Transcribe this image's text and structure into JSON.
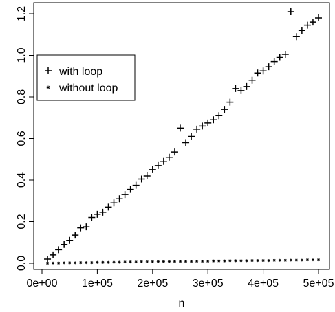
{
  "chart_data": {
    "type": "scatter",
    "title": "",
    "xlabel": "n",
    "ylabel": "",
    "xlim": [
      0,
      500000
    ],
    "ylim": [
      0,
      1.2
    ],
    "grid": false,
    "legend": {
      "position": "top-left",
      "entries": [
        "with loop",
        "without loop"
      ]
    },
    "x_ticks": [
      {
        "value": 0,
        "label": "0e+00"
      },
      {
        "value": 100000,
        "label": "1e+05"
      },
      {
        "value": 200000,
        "label": "2e+05"
      },
      {
        "value": 300000,
        "label": "3e+05"
      },
      {
        "value": 400000,
        "label": "4e+05"
      },
      {
        "value": 500000,
        "label": "5e+05"
      }
    ],
    "y_ticks": [
      {
        "value": 0.0,
        "label": "0.0"
      },
      {
        "value": 0.2,
        "label": "0.2"
      },
      {
        "value": 0.4,
        "label": "0.4"
      },
      {
        "value": 0.6,
        "label": "0.6"
      },
      {
        "value": 0.8,
        "label": "0.8"
      },
      {
        "value": 1.0,
        "label": "1.0"
      },
      {
        "value": 1.2,
        "label": "1.2"
      }
    ],
    "x": [
      10000,
      20000,
      30000,
      40000,
      50000,
      60000,
      70000,
      80000,
      90000,
      100000,
      110000,
      120000,
      130000,
      140000,
      150000,
      160000,
      170000,
      180000,
      190000,
      200000,
      210000,
      220000,
      230000,
      240000,
      250000,
      260000,
      270000,
      280000,
      290000,
      300000,
      310000,
      320000,
      330000,
      340000,
      350000,
      360000,
      370000,
      380000,
      390000,
      400000,
      410000,
      420000,
      430000,
      440000,
      450000,
      460000,
      470000,
      480000,
      490000,
      500000
    ],
    "series": [
      {
        "name": "with loop",
        "marker": "plus",
        "values": [
          0.02,
          0.04,
          0.065,
          0.09,
          0.11,
          0.135,
          0.17,
          0.175,
          0.22,
          0.235,
          0.245,
          0.27,
          0.29,
          0.31,
          0.33,
          0.355,
          0.375,
          0.405,
          0.42,
          0.45,
          0.47,
          0.49,
          0.51,
          0.535,
          0.65,
          0.58,
          0.61,
          0.645,
          0.66,
          0.675,
          0.69,
          0.71,
          0.74,
          0.775,
          0.84,
          0.83,
          0.85,
          0.88,
          0.915,
          0.925,
          0.945,
          0.97,
          0.99,
          1.005,
          1.21,
          1.09,
          1.12,
          1.145,
          1.16,
          1.18
        ]
      },
      {
        "name": "without loop",
        "marker": "star",
        "values": [
          0.0,
          0.001,
          0.001,
          0.002,
          0.002,
          0.002,
          0.003,
          0.003,
          0.003,
          0.004,
          0.004,
          0.004,
          0.005,
          0.005,
          0.006,
          0.006,
          0.006,
          0.007,
          0.007,
          0.007,
          0.008,
          0.008,
          0.008,
          0.009,
          0.009,
          0.009,
          0.009,
          0.01,
          0.01,
          0.01,
          0.011,
          0.011,
          0.011,
          0.012,
          0.012,
          0.012,
          0.012,
          0.013,
          0.013,
          0.013,
          0.013,
          0.014,
          0.014,
          0.014,
          0.015,
          0.015,
          0.015,
          0.016,
          0.016,
          0.016
        ]
      }
    ]
  }
}
